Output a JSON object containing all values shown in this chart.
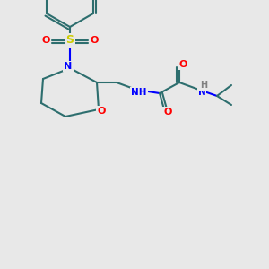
{
  "background_color": "#e8e8e8",
  "bond_color": "#2d6e6e",
  "bond_width": 1.5,
  "atom_colors": {
    "O": "#ff0000",
    "N": "#0000ff",
    "S": "#cccc00",
    "C": "#2d6e6e",
    "H": "#808080"
  }
}
